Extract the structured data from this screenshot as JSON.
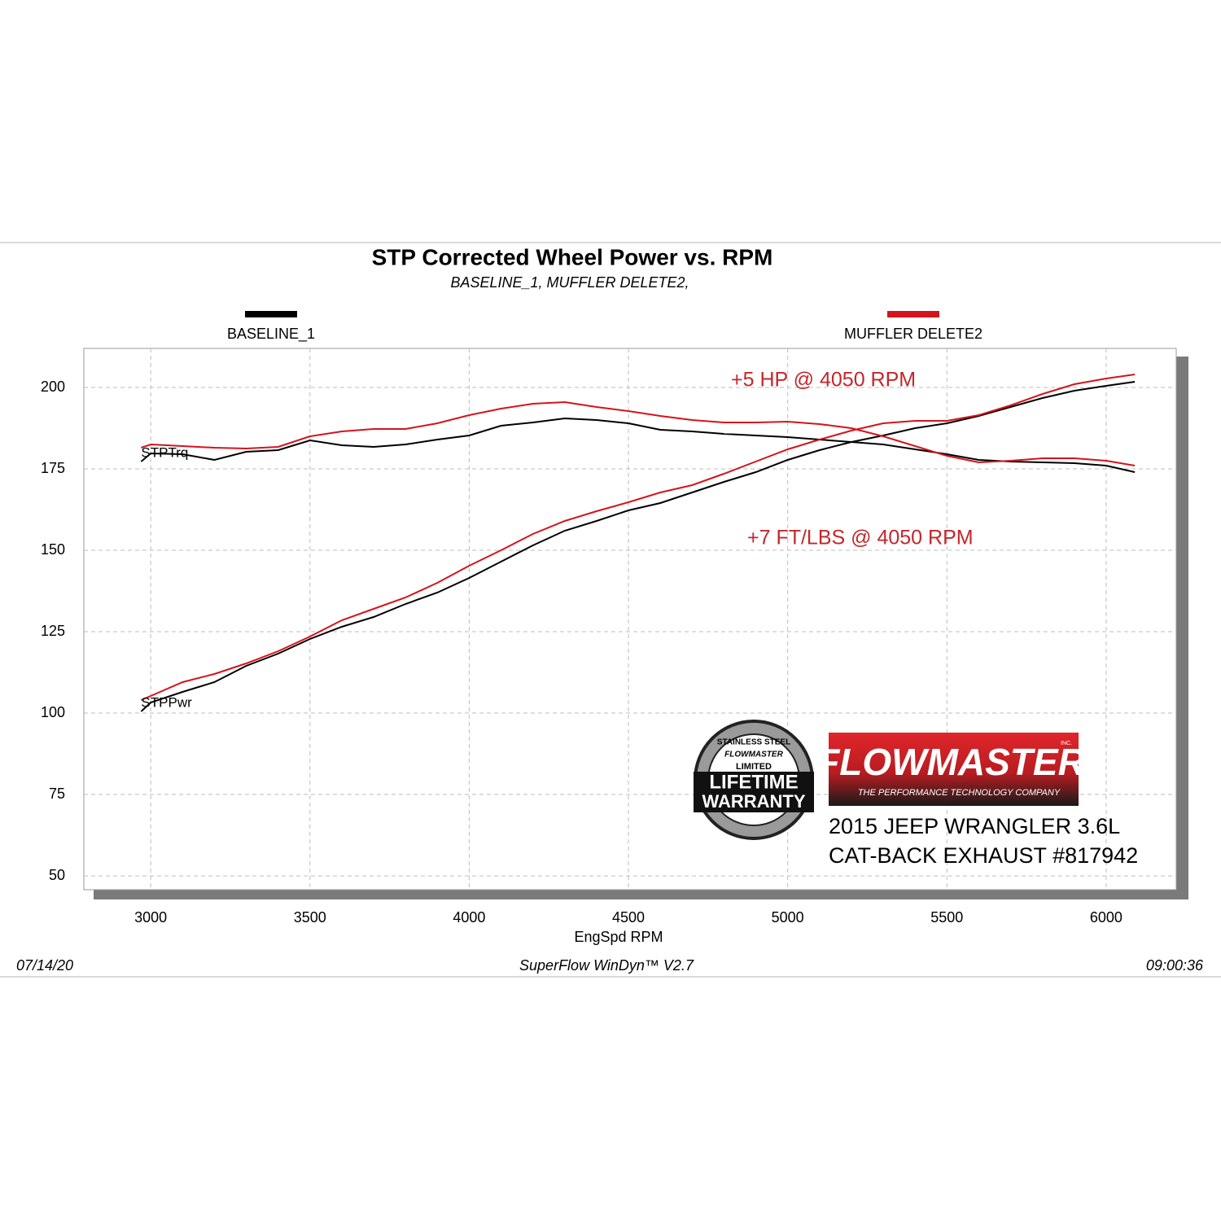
{
  "chart_data": {
    "type": "line",
    "title": "STP Corrected Wheel Power vs. RPM",
    "subtitle": "BASELINE_1, MUFFLER DELETE2,",
    "x_label": "EngSpd  RPM",
    "curve_labels": {
      "torque": "STPTrq",
      "power": "STPPwr"
    },
    "annotations": [
      {
        "text": "+5 HP @ 4050 RPM",
        "color": "#c4262b"
      },
      {
        "text": "+7 FT/LBS @ 4050 RPM",
        "color": "#c4262b"
      }
    ],
    "x": [
      2970,
      3000,
      3100,
      3200,
      3300,
      3400,
      3500,
      3600,
      3700,
      3800,
      3900,
      4000,
      4100,
      4200,
      4300,
      4400,
      4500,
      4600,
      4700,
      4800,
      4900,
      5000,
      5100,
      5200,
      5300,
      5400,
      5500,
      5600,
      5700,
      5800,
      5900,
      6000,
      6090
    ],
    "series": [
      {
        "name": "BASELINE_1",
        "color": "#000000",
        "torque": [
          177.25,
          179.75,
          179.5,
          177.75,
          180.25,
          180.75,
          183.75,
          182.25,
          181.75,
          182.5,
          184,
          185.25,
          188.25,
          189.25,
          190.5,
          190,
          189,
          187,
          186.5,
          185.75,
          185.25,
          184.75,
          184,
          183.25,
          182.5,
          181,
          179.5,
          177.75,
          177.25,
          177,
          176.75,
          176,
          174
        ],
        "power": [
          100.5,
          103.25,
          106.5,
          109.5,
          114.5,
          118.25,
          122.75,
          126.5,
          129.5,
          133.5,
          137,
          141.5,
          146.5,
          151.5,
          156,
          159,
          162.25,
          164.5,
          167.75,
          171,
          174,
          177.75,
          180.75,
          183.25,
          185.25,
          187.5,
          189,
          191.25,
          194,
          196.75,
          199,
          200.5,
          201.75
        ]
      },
      {
        "name": "MUFFLER DELETE2",
        "color": "#d4141c",
        "torque": [
          181.5,
          182.5,
          182,
          181.5,
          181.25,
          181.75,
          185,
          186.5,
          187.25,
          187.25,
          189,
          191.5,
          193.5,
          195,
          195.5,
          194,
          192.75,
          191.25,
          190,
          189.25,
          189.25,
          189.5,
          188.75,
          187.5,
          185,
          182,
          179,
          177,
          177.5,
          178.25,
          178.25,
          177.5,
          176
        ],
        "power": [
          104,
          105.25,
          109.5,
          112,
          115.25,
          119,
          123.5,
          128.5,
          132,
          135.5,
          140,
          145.25,
          150,
          155,
          159,
          162,
          164.75,
          167.75,
          170,
          173.5,
          177.25,
          181,
          184,
          186.75,
          189,
          189.75,
          189.75,
          191.5,
          194.5,
          198,
          201,
          202.75,
          204
        ]
      }
    ],
    "xlim": [
      2790,
      6220
    ],
    "ylim": [
      45.75,
      212
    ],
    "xticks": [
      3000,
      3500,
      4000,
      4500,
      5000,
      5500,
      6000
    ],
    "yticks": [
      50,
      75,
      100,
      125,
      150,
      175,
      200
    ],
    "grid": true,
    "footer": {
      "date": "07/14/20",
      "software": "SuperFlow WinDyn™ V2.7",
      "time": "09:00:36"
    },
    "branding": {
      "badge": [
        "STAINLESS STEEL",
        "FLOWMASTER",
        "LIMITED",
        "LIFETIME",
        "WARRANTY"
      ],
      "logo": "FLOWMASTER",
      "logo_inc": "INC.",
      "logo_tagline": "THE PERFORMANCE TECHNOLOGY COMPANY",
      "caption": [
        "2015 JEEP WRANGLER 3.6L",
        "CAT-BACK EXHAUST #817942"
      ]
    }
  }
}
